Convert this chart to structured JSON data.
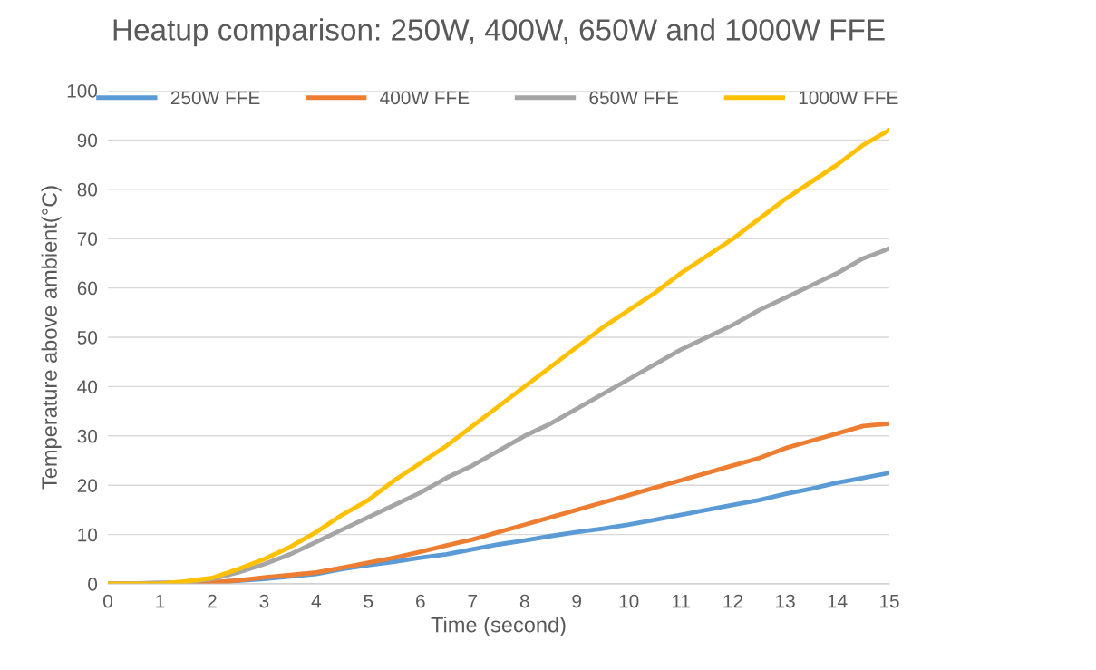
{
  "chart_data": {
    "type": "line",
    "title": "Heatup comparison: 250W, 400W, 650W and 1000W FFE",
    "xlabel": "Time (second)",
    "ylabel": "Temperature above ambient(°C)",
    "xlim": [
      0,
      15
    ],
    "xticks": [
      0,
      1,
      2,
      3,
      4,
      5,
      6,
      7,
      8,
      9,
      10,
      11,
      12,
      13,
      14,
      15
    ],
    "ylim": [
      0,
      100
    ],
    "yticks": [
      0,
      10,
      20,
      30,
      40,
      50,
      60,
      70,
      80,
      90,
      100
    ],
    "grid": "y",
    "legend": "top",
    "marker": "none",
    "line_style": "solid",
    "series": [
      {
        "name": "250W FFE",
        "color": "#5b9bd5",
        "x": [
          0,
          2,
          3,
          3.5,
          4,
          4.5,
          5,
          5.5,
          6,
          6.5,
          7,
          7.5,
          8,
          8.5,
          9,
          9.5,
          10,
          10.5,
          11,
          11.5,
          12,
          12.5,
          13,
          13.5,
          14,
          14.5,
          15
        ],
        "values": [
          0,
          0.3,
          1,
          1.5,
          2,
          3,
          3.8,
          4.5,
          5.3,
          6,
          7,
          8,
          8.8,
          9.7,
          10.5,
          11.2,
          12,
          13,
          14,
          15,
          16,
          17,
          18.2,
          19.3,
          20.5,
          21.5,
          22.5
        ]
      },
      {
        "name": "400W FFE",
        "color": "#ed7d31",
        "x": [
          0,
          2,
          2.5,
          3,
          3.5,
          4,
          4.5,
          5,
          5.5,
          6,
          6.5,
          7,
          7.5,
          8,
          8.5,
          9,
          9.5,
          10,
          10.5,
          11,
          11.5,
          12,
          12.5,
          13,
          13.5,
          14,
          14.5,
          15
        ],
        "values": [
          0,
          0.3,
          0.7,
          1.3,
          1.8,
          2.3,
          3.3,
          4.3,
          5.3,
          6.5,
          7.8,
          9,
          10.5,
          12,
          13.5,
          15,
          16.5,
          18,
          19.5,
          21,
          22.5,
          24,
          25.5,
          27.5,
          29,
          30.5,
          32,
          32.5
        ]
      },
      {
        "name": "650W FFE",
        "color": "#a5a5a5",
        "x": [
          0,
          1.5,
          2,
          2.5,
          3,
          3.5,
          4,
          4.5,
          5,
          5.5,
          6,
          6.5,
          7,
          7.5,
          8,
          8.5,
          9,
          9.5,
          10,
          10.5,
          11,
          11.5,
          12,
          12.5,
          13,
          13.5,
          14,
          14.5,
          15
        ],
        "values": [
          0,
          0.3,
          1,
          2.3,
          4,
          6,
          8.5,
          11,
          13.5,
          16,
          18.5,
          21.5,
          24,
          27,
          30,
          32.5,
          35.5,
          38.5,
          41.5,
          44.5,
          47.5,
          50,
          52.5,
          55.5,
          58,
          60.5,
          63,
          66,
          68
        ]
      },
      {
        "name": "1000W FFE",
        "color": "#ffc000",
        "x": [
          0,
          1,
          1.5,
          2,
          2.5,
          3,
          3.5,
          4,
          4.5,
          5,
          5.5,
          6,
          6.5,
          7,
          7.5,
          8,
          8.5,
          9,
          9.5,
          10,
          10.5,
          11,
          11.5,
          12,
          12.5,
          13,
          13.5,
          14,
          14.5,
          15
        ],
        "values": [
          0,
          0,
          0.5,
          1.2,
          3,
          5,
          7.5,
          10.5,
          14,
          17,
          21,
          24.5,
          28,
          32,
          36,
          40,
          44,
          48,
          52,
          55.5,
          59,
          63,
          66.5,
          70,
          74,
          78,
          81.5,
          85,
          89,
          92
        ]
      }
    ]
  }
}
